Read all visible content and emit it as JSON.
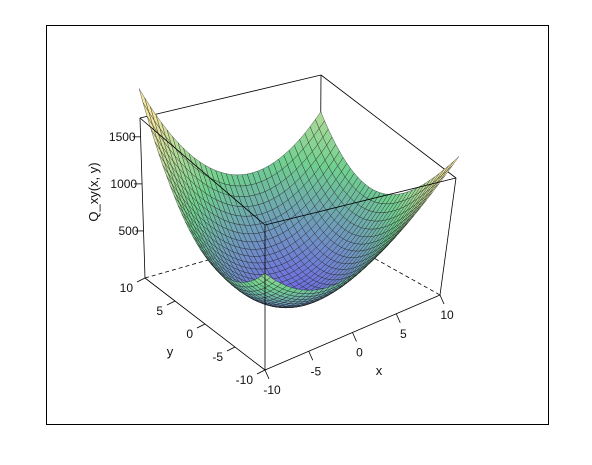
{
  "chart_data": {
    "type": "surface3d",
    "function": "Q_xy(x, y)",
    "x": [
      -10,
      -9,
      -8,
      -7,
      -6,
      -5,
      -4,
      -3,
      -2,
      -1,
      0,
      1,
      2,
      3,
      4,
      5,
      6,
      7,
      8,
      9,
      10
    ],
    "y": [
      -10,
      -9,
      -8,
      -7,
      -6,
      -5,
      -4,
      -3,
      -2,
      -1,
      0,
      1,
      2,
      3,
      4,
      5,
      6,
      7,
      8,
      9,
      10
    ],
    "z_approx": "quadratic bowl, min near 0 at (0,0), max about 1700 at corner",
    "xlabel": "x",
    "ylabel": "y",
    "zlabel": "Q_xy(x, y)",
    "xlim": [
      -10,
      10
    ],
    "ylim": [
      -10,
      10
    ],
    "zlim": [
      0,
      1700
    ],
    "xticks": [
      "-10",
      "-5",
      "0",
      "5",
      "10"
    ],
    "yticks": [
      "-10",
      "-5",
      "0",
      "5",
      "10"
    ],
    "zticks": [
      "500",
      "1000",
      "1500"
    ],
    "colors": {
      "low": "#6f6fe0",
      "mid": "#6fcf8f",
      "high": "#f2e6a0"
    }
  }
}
